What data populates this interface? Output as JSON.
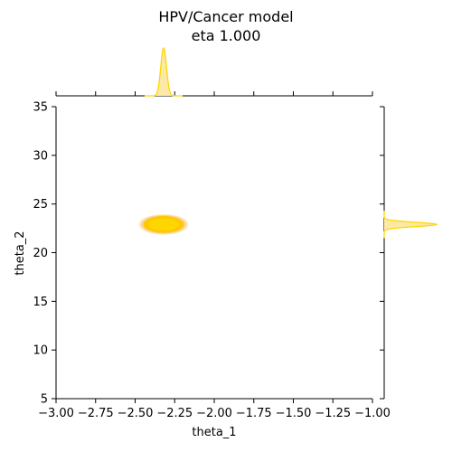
{
  "chart_data": {
    "type": "scatter",
    "title": "HPV/Cancer model",
    "subtitle": "eta 1.000",
    "xlabel": "theta_1",
    "ylabel": "theta_2",
    "xlim": [
      -3.0,
      -1.0
    ],
    "ylim": [
      5,
      35
    ],
    "x_ticks": [
      "−3.00",
      "−2.75",
      "−2.50",
      "−2.25",
      "−2.00",
      "−1.75",
      "−1.50",
      "−1.25",
      "−1.00"
    ],
    "x_tick_values": [
      -3.0,
      -2.75,
      -2.5,
      -2.25,
      -2.0,
      -1.75,
      -1.5,
      -1.25,
      -1.0
    ],
    "y_ticks": [
      "5",
      "10",
      "15",
      "20",
      "25",
      "30",
      "35"
    ],
    "y_tick_values": [
      5,
      10,
      15,
      20,
      25,
      30,
      35
    ],
    "grid": false,
    "joint_density": {
      "center": [
        -2.32,
        22.9
      ],
      "spread": [
        0.03,
        0.35
      ],
      "color": "#FFD700",
      "edge_color": "#F4A261"
    },
    "marginal_x": {
      "peak": -2.32,
      "width": 0.018,
      "color": "#FFD700",
      "fill_color": "#FCE9A6"
    },
    "marginal_y": {
      "peak": 22.9,
      "width": 0.22,
      "color": "#FFD700",
      "fill_color": "#FCE9A6"
    }
  }
}
